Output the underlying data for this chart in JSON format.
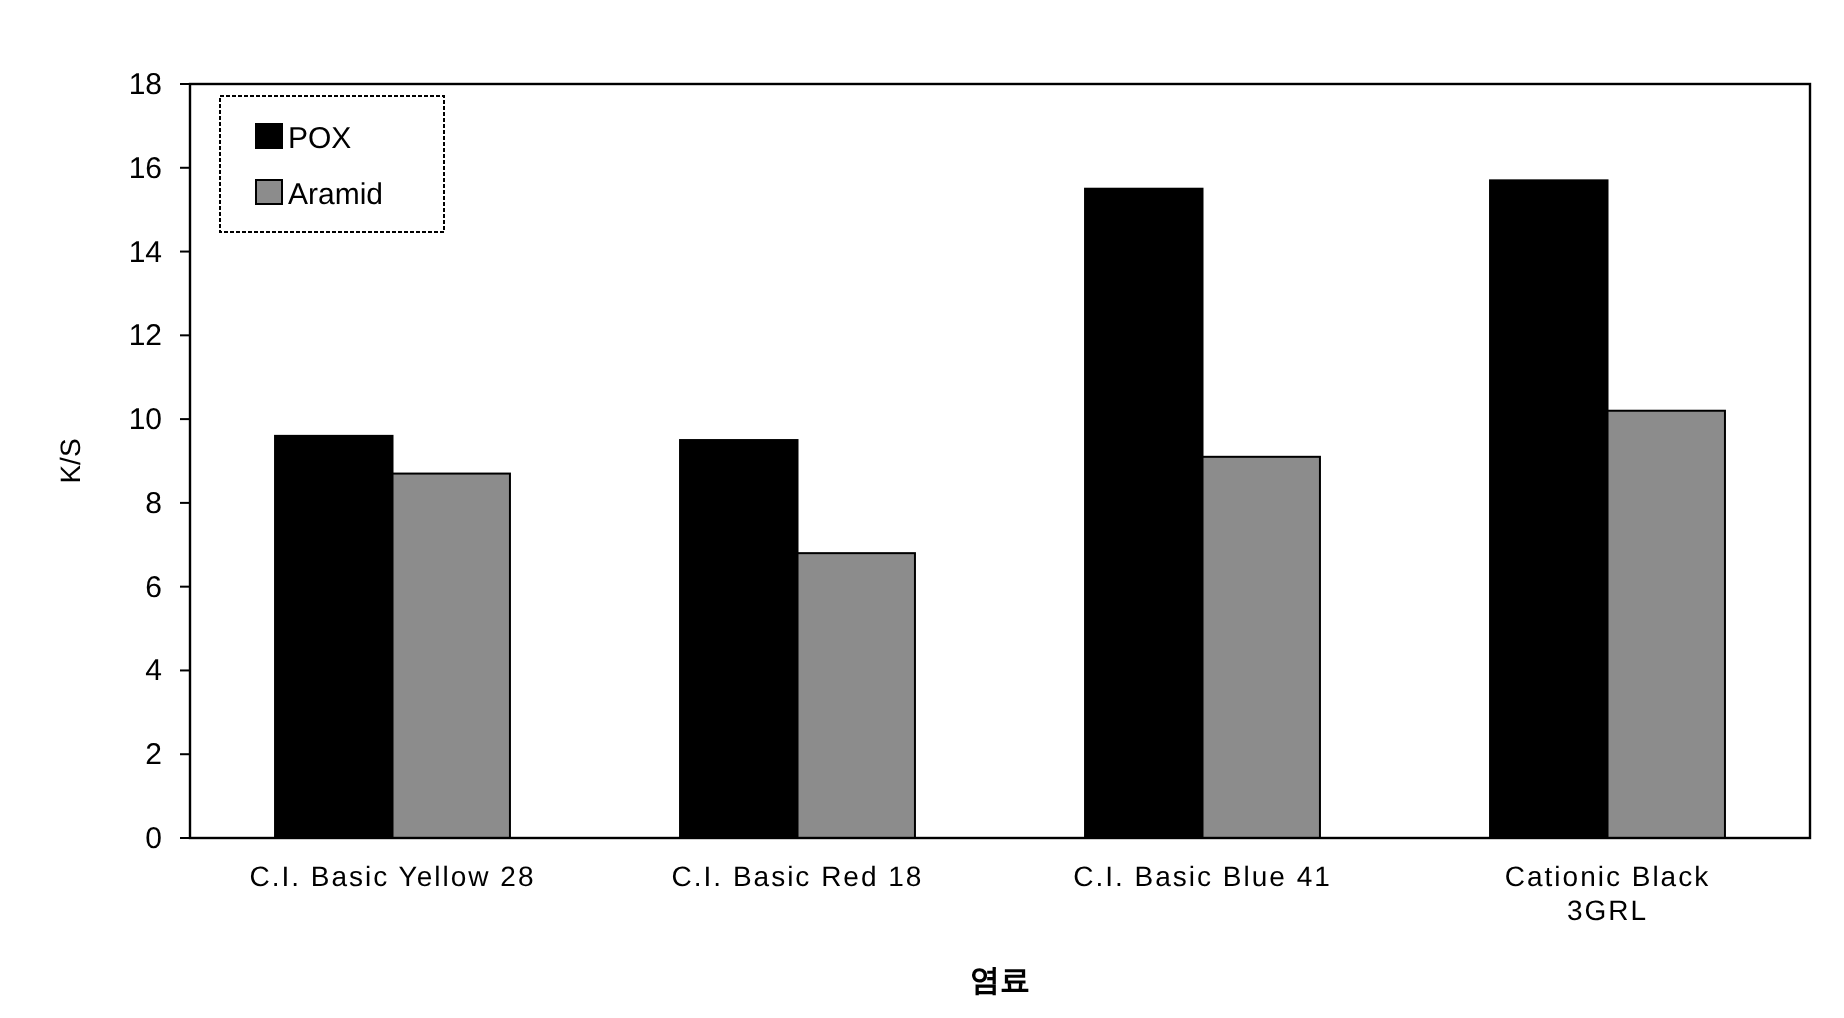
{
  "chart_data": {
    "type": "bar",
    "categories": [
      "C.I. Basic Yellow 28",
      "C.I. Basic Red 18",
      "C.I. Basic Blue 41",
      "Cationic Black\n3GRL"
    ],
    "series": [
      {
        "name": "POX",
        "color": "#000000",
        "values": [
          9.6,
          9.5,
          15.5,
          15.7
        ]
      },
      {
        "name": "Aramid",
        "color": "#8c8c8c",
        "values": [
          8.7,
          6.8,
          9.1,
          10.2
        ]
      }
    ],
    "xlabel": "염료",
    "ylabel": "K/S",
    "ylim": [
      0,
      18
    ],
    "yticks": [
      0,
      2,
      4,
      6,
      8,
      10,
      12,
      14,
      16,
      18
    ],
    "legend": "top left"
  }
}
